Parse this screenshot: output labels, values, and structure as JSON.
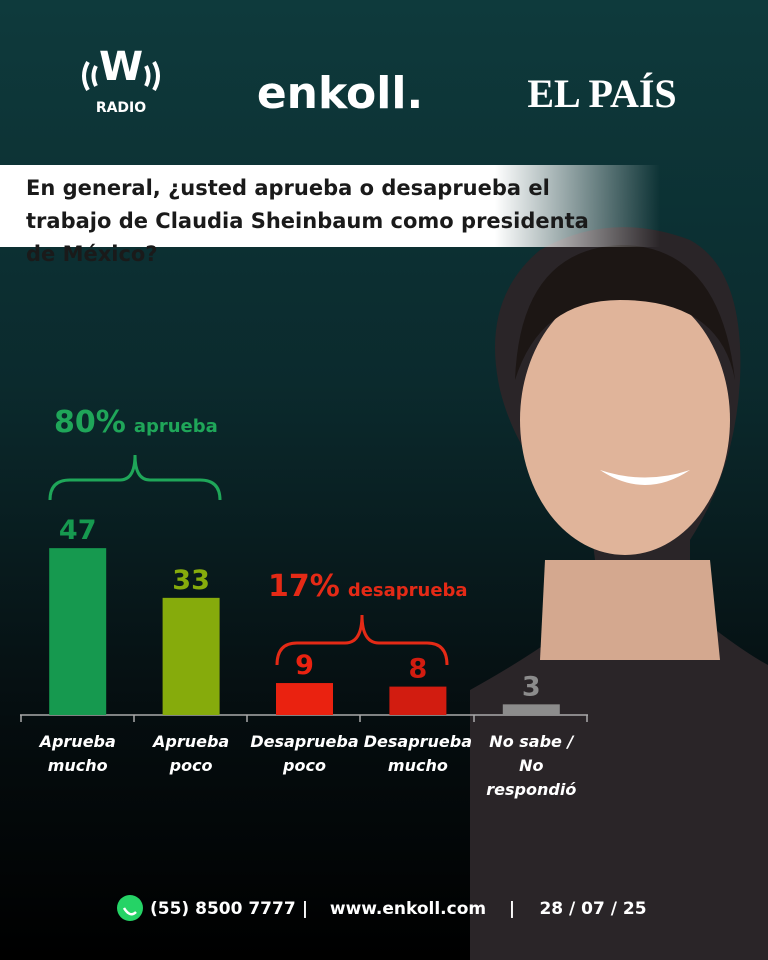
{
  "header": {
    "logo_w": "W",
    "logo_w_sub": "RADIO",
    "logo_enkoll": "enkoll.",
    "logo_elpais": "EL PAÍS"
  },
  "chart_data": {
    "type": "bar",
    "title": "En general, ¿usted aprueba o desaprueba el trabajo de Claudia Sheinbaum como presidenta de México?",
    "categories": [
      "Aprueba mucho",
      "Aprueba poco",
      "Desaprueba poco",
      "Desaprueba mucho",
      "No sabe / No respondió"
    ],
    "values": [
      47,
      33,
      9,
      8,
      3
    ],
    "colors": [
      "#16994f",
      "#86ab0c",
      "#ea2210",
      "#d21c10",
      "#8c8c8c"
    ],
    "groups": [
      {
        "value_label": "80%",
        "label": "aprueba",
        "color": "#1fa659"
      },
      {
        "value_label": "17%",
        "label": "desaprueba",
        "color": "#e42a16"
      }
    ]
  },
  "footer": {
    "phone": "(55) 8500 7777",
    "separator": "|",
    "website": "www.enkoll.com",
    "date": "28 / 07 / 25"
  }
}
